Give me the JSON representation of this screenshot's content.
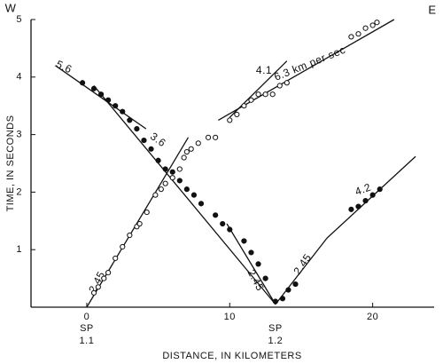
{
  "chart_data": {
    "type": "scatter",
    "xlabel": "DISTANCE, IN KILOMETERS",
    "ylabel": "TIME, IN SECONDS",
    "corner_labels": [
      "W",
      "E"
    ],
    "xlim": [
      -3.9,
      24.3
    ],
    "ylim": [
      0,
      5
    ],
    "xticks": [
      0,
      10,
      20
    ],
    "yticks": [
      1,
      2,
      3,
      4,
      5
    ],
    "color": "#111111",
    "series": [
      {
        "marker": "open",
        "x": [
          0.5,
          0.8,
          1.2,
          1.5,
          2.0,
          2.5,
          3.0,
          3.5,
          3.7,
          4.2,
          4.8,
          5.2,
          5.5,
          6.0,
          6.5,
          6.8,
          7.0,
          7.3,
          7.8,
          8.5,
          9.0,
          10.0,
          10.5,
          11.0,
          11.5,
          12.0,
          12.5,
          13.0,
          13.5,
          14.0,
          18.5,
          19.0,
          19.5,
          20.0,
          20.3
        ],
        "values": [
          0.25,
          0.35,
          0.5,
          0.6,
          0.85,
          1.05,
          1.25,
          1.4,
          1.45,
          1.65,
          1.95,
          2.05,
          2.15,
          2.25,
          2.4,
          2.6,
          2.7,
          2.75,
          2.85,
          2.95,
          2.95,
          3.25,
          3.35,
          3.5,
          3.6,
          3.7,
          3.7,
          3.7,
          3.85,
          3.9,
          4.7,
          4.75,
          4.85,
          4.9,
          4.95
        ]
      },
      {
        "marker": "filled",
        "x": [
          -0.3,
          0.5,
          1.0,
          1.5,
          2.0,
          2.5,
          3.0,
          3.5,
          4.0,
          4.5,
          5.0,
          5.5,
          6.0,
          6.5,
          7.0,
          7.5,
          8.0,
          9.0,
          9.5,
          10.0,
          11.0,
          11.5,
          12.0,
          12.5,
          13.2,
          13.7,
          14.1,
          14.6,
          18.5,
          19.0,
          19.5,
          20.0,
          20.5
        ],
        "values": [
          3.9,
          3.8,
          3.7,
          3.6,
          3.5,
          3.4,
          3.25,
          3.1,
          2.9,
          2.75,
          2.55,
          2.4,
          2.35,
          2.2,
          2.05,
          1.95,
          1.8,
          1.6,
          1.45,
          1.35,
          1.15,
          0.95,
          0.75,
          0.5,
          0.1,
          0.15,
          0.3,
          0.4,
          1.7,
          1.75,
          1.85,
          1.95,
          2.05
        ]
      }
    ],
    "fit_lines": [
      {
        "label": "2.45",
        "x": [
          0,
          7.1
        ],
        "y": [
          0,
          2.95
        ]
      },
      {
        "label": "3.6",
        "x": [
          0.5,
          13.2
        ],
        "y": [
          3.85,
          0.05
        ]
      },
      {
        "label": "5.6",
        "x": [
          -2.2,
          4.15
        ],
        "y": [
          4.2,
          3.1
        ]
      },
      {
        "label": "6.3 km per sec",
        "x": [
          9.2,
          21.5
        ],
        "y": [
          3.25,
          5.0
        ]
      },
      {
        "label": "4.1",
        "x": [
          10.0,
          14.0
        ],
        "y": [
          3.3,
          4.28
        ]
      },
      {
        "label": "2.45",
        "x": [
          9.8,
          13.2
        ],
        "y": [
          1.45,
          0.05
        ]
      },
      {
        "label": "2.45",
        "x": [
          13.2,
          16.8
        ],
        "y": [
          0.05,
          1.2
        ]
      },
      {
        "label": "4.2",
        "x": [
          16.8,
          23.0
        ],
        "y": [
          1.2,
          2.62
        ]
      }
    ],
    "shot_points": [
      {
        "label": [
          "SP",
          "1.1"
        ],
        "x": 0
      },
      {
        "label": [
          "SP",
          "1.2"
        ],
        "x": 13.2
      }
    ]
  }
}
